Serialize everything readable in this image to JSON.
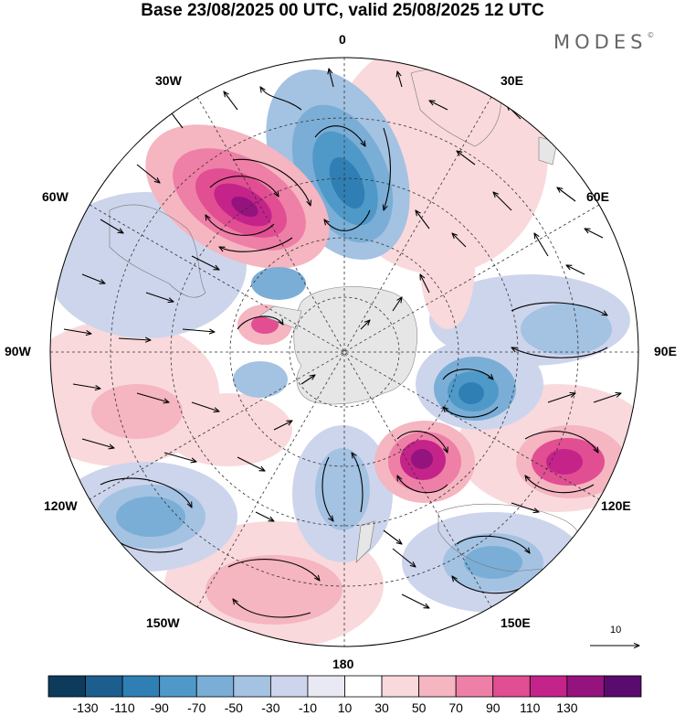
{
  "title": "Base 23/08/2025 00 UTC, valid 25/08/2025 12 UTC",
  "brand": {
    "name": "MODES",
    "mark": "©"
  },
  "longitude_labels": {
    "top": "0",
    "top_right": "30E",
    "right_upper": "60E",
    "right": "90E",
    "right_lower": "120E",
    "bottom_right": "150E",
    "bottom": "180",
    "bottom_left": "150W",
    "left_lower": "120W",
    "left": "90W",
    "left_upper": "60W",
    "top_left": "30W"
  },
  "reference_vector": "10",
  "colorbar": {
    "colors": [
      "#0d3b5c",
      "#1c5f8e",
      "#2f7fb5",
      "#4f99c9",
      "#7aaed6",
      "#a4c2e2",
      "#cdd5ec",
      "#e9e9f4",
      "#ffffff",
      "#f9d9dc",
      "#f5b5c1",
      "#ee7fa6",
      "#e14e92",
      "#c4238a",
      "#95137e",
      "#5a0b6e"
    ],
    "labels": [
      "-130",
      "-110",
      "-90",
      "-70",
      "-50",
      "-30",
      "-10",
      "10",
      "30",
      "50",
      "70",
      "90",
      "110",
      "130"
    ]
  },
  "palette": {
    "neg_strong": "#2f7fb5",
    "neg_mid": "#7aaed6",
    "neg_weak": "#cdd5ec",
    "pos_weak": "#f9d9dc",
    "pos_mid": "#ee7fa6",
    "pos_strong": "#95137e",
    "land": "#e6e6e6"
  }
}
